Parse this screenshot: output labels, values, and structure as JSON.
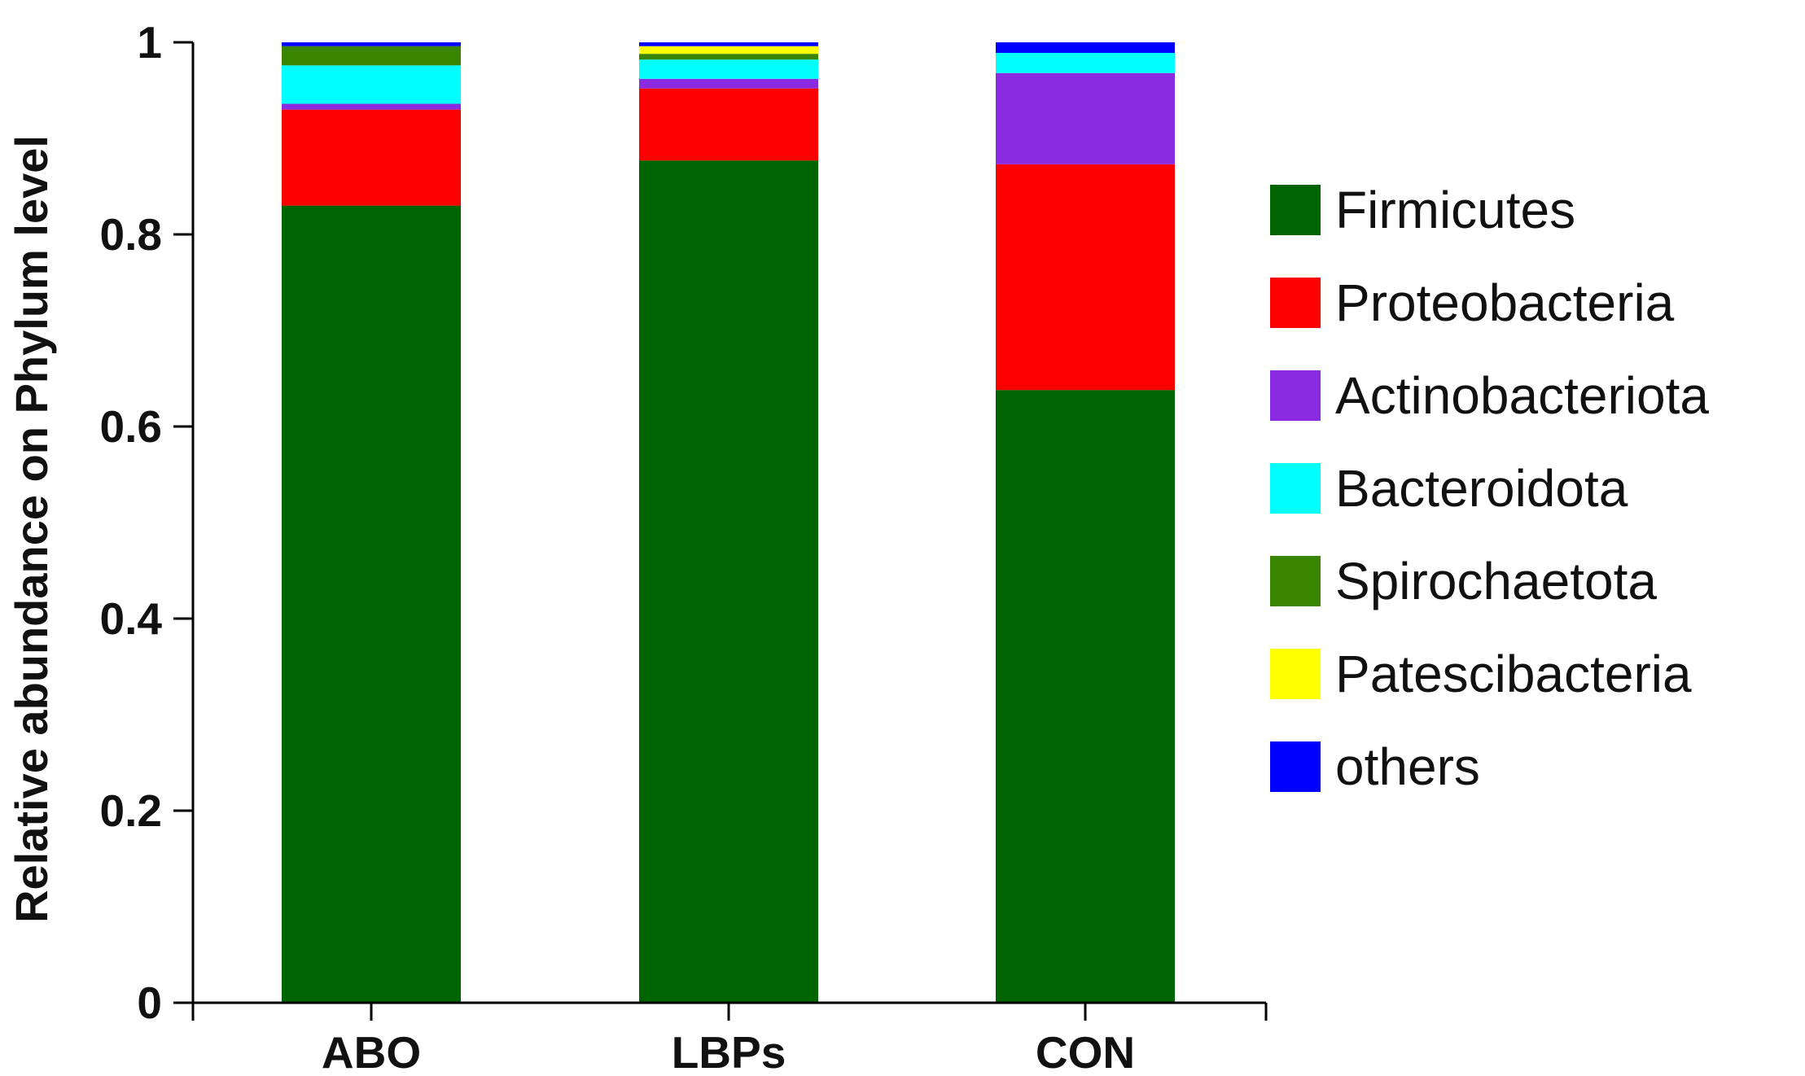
{
  "chart_data": {
    "type": "bar",
    "stacked": true,
    "title": "",
    "xlabel": "",
    "ylabel": "Relative abundance on Phylum level",
    "ylim": [
      0,
      1
    ],
    "yticks": [
      "0",
      "0.2",
      "0.4",
      "0.6",
      "0.8",
      "1"
    ],
    "ytick_values": [
      0,
      0.2,
      0.4,
      0.6,
      0.8,
      1
    ],
    "grid": false,
    "legend_position": "right",
    "categories": [
      "ABO",
      "LBPs",
      "CON"
    ],
    "series": [
      {
        "name": "Firmicutes",
        "color": "#006400",
        "values": [
          0.83,
          0.877,
          0.638
        ]
      },
      {
        "name": "Proteobacteria",
        "color": "#ff0000",
        "values": [
          0.1,
          0.075,
          0.235
        ]
      },
      {
        "name": "Actinobacteriota",
        "color": "#8a2be2",
        "values": [
          0.006,
          0.01,
          0.095
        ]
      },
      {
        "name": "Bacteroidota",
        "color": "#00ffff",
        "values": [
          0.04,
          0.02,
          0.021
        ]
      },
      {
        "name": "Spirochaetota",
        "color": "#3a8500",
        "values": [
          0.02,
          0.006,
          0.0
        ]
      },
      {
        "name": "Patescibacteria",
        "color": "#ffff00",
        "values": [
          0.0,
          0.008,
          0.0
        ]
      },
      {
        "name": "others",
        "color": "#0000ff",
        "values": [
          0.004,
          0.004,
          0.011
        ]
      }
    ]
  }
}
